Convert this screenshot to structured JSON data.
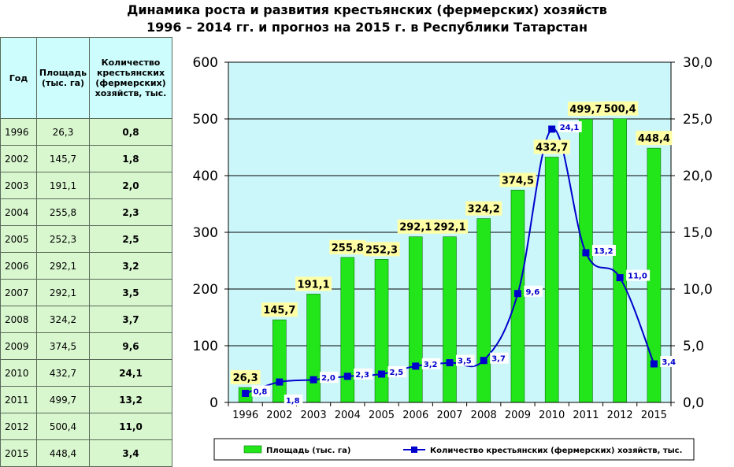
{
  "title": {
    "line1": "Динамика роста и развития крестьянских (фермерских) хозяйств",
    "line2": "1996 – 2014 гг. и прогноз на 2015 г. в Республики Татарстан"
  },
  "table": {
    "headers": [
      "Год",
      "Площадь (тыс. га)",
      "Количество крестьянских (фермерских) хозяйств, тыс."
    ],
    "rows": [
      {
        "year": "1996",
        "area": "26,3",
        "count": "0,8"
      },
      {
        "year": "2002",
        "area": "145,7",
        "count": "1,8"
      },
      {
        "year": "2003",
        "area": "191,1",
        "count": "2,0"
      },
      {
        "year": "2004",
        "area": "255,8",
        "count": "2,3"
      },
      {
        "year": "2005",
        "area": "252,3",
        "count": "2,5"
      },
      {
        "year": "2006",
        "area": "292,1",
        "count": "3,2"
      },
      {
        "year": "2007",
        "area": "292,1",
        "count": "3,5"
      },
      {
        "year": "2008",
        "area": "324,2",
        "count": "3,7"
      },
      {
        "year": "2009",
        "area": "374,5",
        "count": "9,6"
      },
      {
        "year": "2010",
        "area": "432,7",
        "count": "24,1"
      },
      {
        "year": "2011",
        "area": "499,7",
        "count": "13,2"
      },
      {
        "year": "2012",
        "area": "500,4",
        "count": "11,0"
      },
      {
        "year": "2015",
        "area": "448,4",
        "count": "3,4"
      }
    ]
  },
  "colors": {
    "plot_bg": "#ccf7fa",
    "bar": "#22e619",
    "line": "#0000cc",
    "bar_label_bg": "#ffffa6"
  },
  "chart_data": {
    "type": "bar+line",
    "categories": [
      "1996",
      "2002",
      "2003",
      "2004",
      "2005",
      "2006",
      "2007",
      "2008",
      "2009",
      "2010",
      "2011",
      "2012",
      "2015"
    ],
    "series": [
      {
        "name": "Площадь (тыс. га)",
        "type": "bar",
        "axis": "left",
        "values": [
          26.3,
          145.7,
          191.1,
          255.8,
          252.3,
          292.1,
          292.1,
          324.2,
          374.5,
          432.7,
          499.7,
          500.4,
          448.4
        ],
        "labels": [
          "26,3",
          "145,7",
          "191,1",
          "255,8",
          "252,3",
          "292,1",
          "292,1",
          "324,2",
          "374,5",
          "432,7",
          "499,7",
          "500,4",
          "448,4"
        ]
      },
      {
        "name": "Количество  крестьянских  (фермерских)  хозяйств,  тыс.",
        "type": "line",
        "axis": "right",
        "values": [
          0.8,
          1.8,
          2.0,
          2.3,
          2.5,
          3.2,
          3.5,
          3.7,
          9.6,
          24.1,
          13.2,
          11.0,
          3.4
        ],
        "labels": [
          "0,8",
          "1,8",
          "2,0",
          "2,3",
          "2,5",
          "3,2",
          "3,5",
          "3,7",
          "9,6",
          "24,1",
          "13,2",
          "11,0",
          "3,4"
        ]
      }
    ],
    "y_left": {
      "min": 0,
      "max": 600,
      "ticks": [
        "0",
        "100",
        "200",
        "300",
        "400",
        "500",
        "600"
      ]
    },
    "y_right": {
      "min": 0,
      "max": 30,
      "ticks": [
        "0,0",
        "5,0",
        "10,0",
        "15,0",
        "20,0",
        "25,0",
        "30,0"
      ]
    },
    "grid": true,
    "legend": "bottom"
  }
}
